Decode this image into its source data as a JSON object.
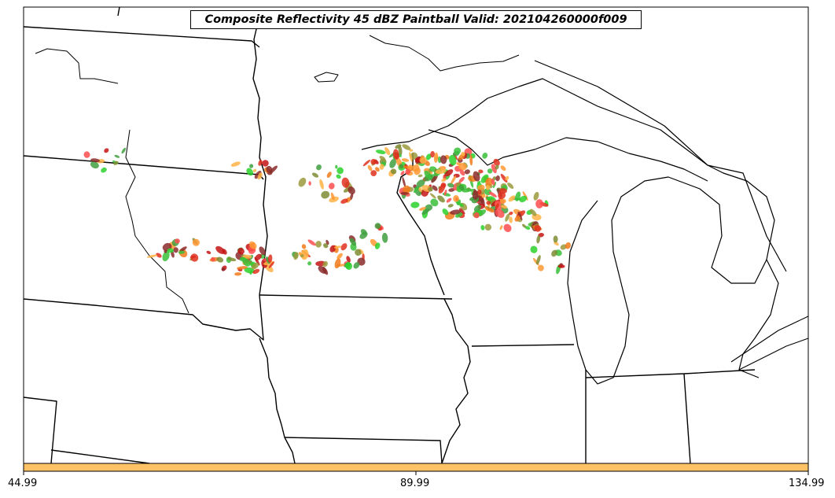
{
  "title": "Composite Reflectivity 45 dBZ Paintball Valid: 202104260000f009",
  "colorbar": {
    "color": "#ffc266",
    "ticks": [
      "44.99",
      "89.99",
      "134.99"
    ]
  },
  "colors": {
    "boundaries": "#000000",
    "paintball": [
      "#2bd12b",
      "#39c039",
      "#ff9933",
      "#ffb347",
      "#e0301e",
      "#c41414",
      "#8b2b2b",
      "#7f8c33",
      "#3f9f3f",
      "#ff4d4d",
      "#f07a1a",
      "#9a9a3c"
    ]
  }
}
